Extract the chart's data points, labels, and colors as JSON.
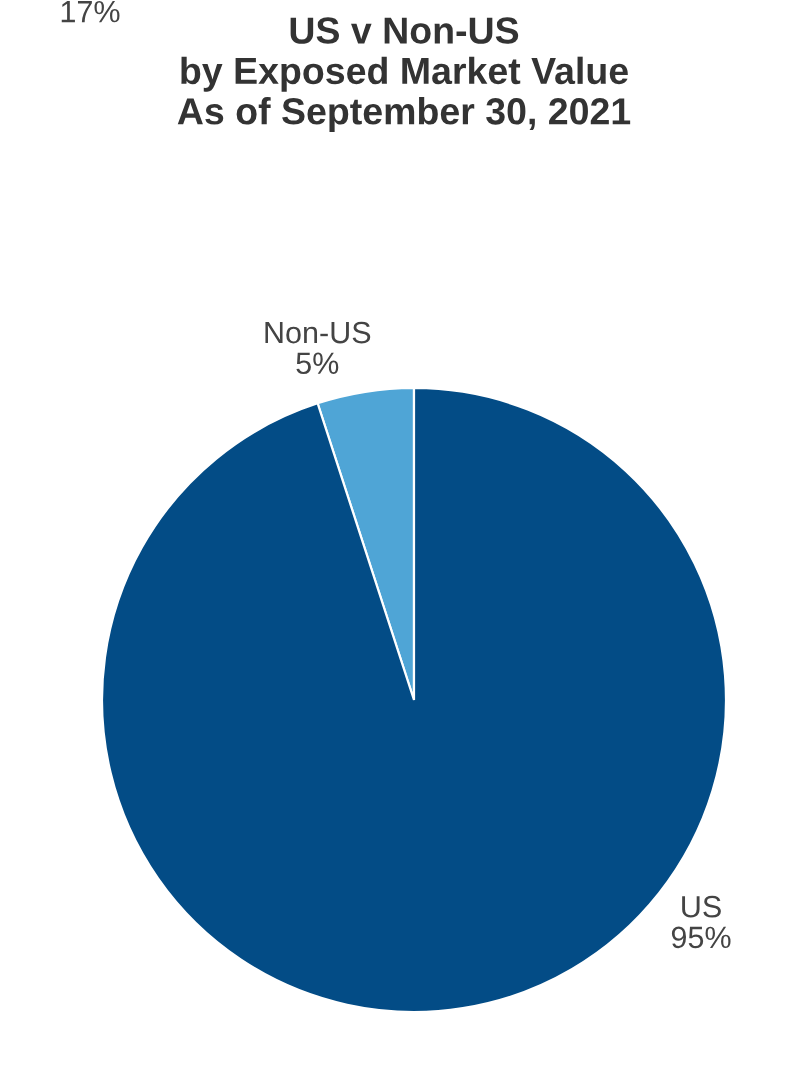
{
  "chart_data": {
    "type": "pie",
    "title": "US v Non-US\nby Exposed Market Value\nAs of September 30, 2021",
    "categories": [
      "Non-US",
      "US"
    ],
    "values": [
      5,
      95
    ],
    "value_labels": [
      "5%",
      "95%"
    ],
    "colors": [
      "#4fa5d6",
      "#034c86"
    ],
    "annotations": [
      "17%"
    ],
    "legend": false
  }
}
